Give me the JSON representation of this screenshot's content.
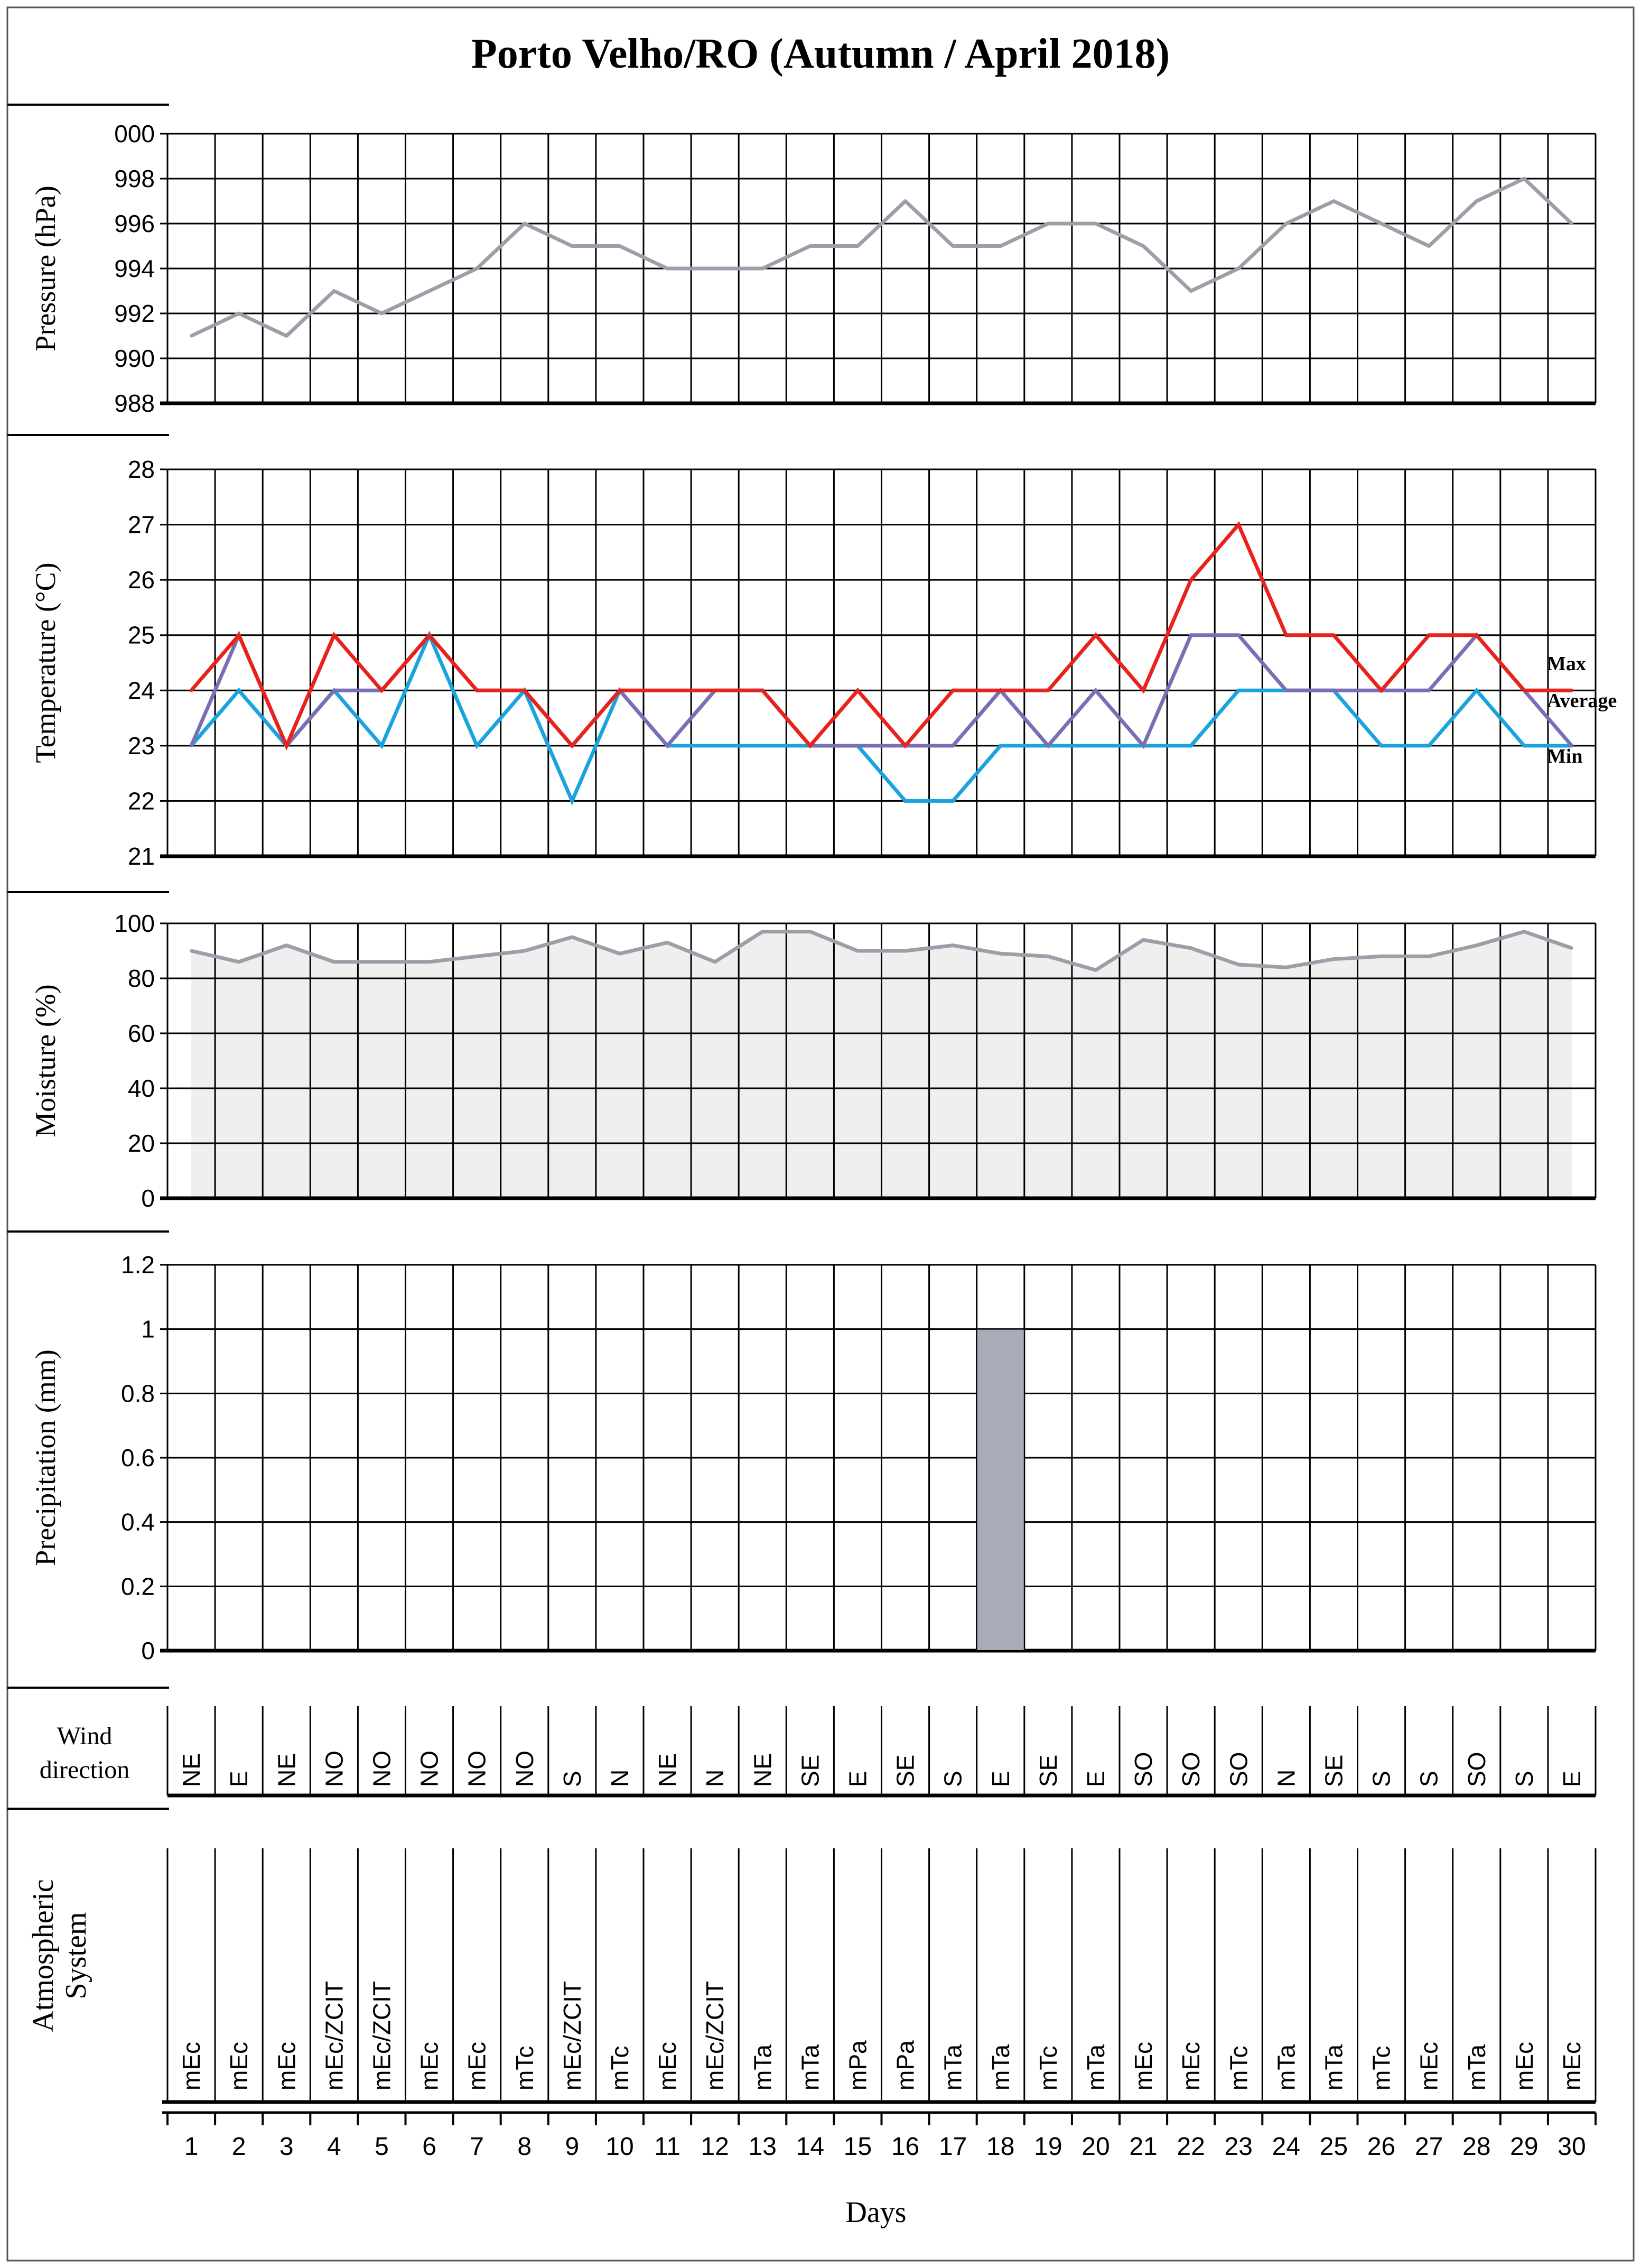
{
  "title": "Porto Velho/RO (Autumn / April 2018)",
  "days": [
    "1",
    "2",
    "3",
    "4",
    "5",
    "6",
    "7",
    "8",
    "9",
    "10",
    "11",
    "12",
    "13",
    "14",
    "15",
    "16",
    "17",
    "18",
    "19",
    "20",
    "21",
    "22",
    "23",
    "24",
    "25",
    "26",
    "27",
    "28",
    "29",
    "30"
  ],
  "days_label": "Days",
  "colors": {
    "grid": "#000000",
    "pressure_line": "#a09da8",
    "temp_max": "#e8221c",
    "temp_avg": "#7a6fb4",
    "temp_min": "#1aa3dc",
    "moisture_line": "#a09da8",
    "moisture_fill": "#efefef",
    "precip_bar": "#a9abb8"
  },
  "chart_data": [
    {
      "type": "line",
      "name": "pressure",
      "ylabel": "Pressure  (hPa)",
      "tick_labels": [
        "988",
        "990",
        "992",
        "994",
        "996",
        "998",
        "000"
      ],
      "ylim": [
        988,
        1000
      ],
      "x": [
        1,
        2,
        3,
        4,
        5,
        6,
        7,
        8,
        9,
        10,
        11,
        12,
        13,
        14,
        15,
        16,
        17,
        18,
        19,
        20,
        21,
        22,
        23,
        24,
        25,
        26,
        27,
        28,
        29,
        30
      ],
      "values": [
        991,
        992,
        991,
        993,
        992,
        993,
        994,
        996,
        995,
        995,
        994,
        994,
        994,
        995,
        995,
        997,
        995,
        995,
        996,
        996,
        995,
        993,
        994,
        996,
        997,
        996,
        995,
        997,
        998,
        996
      ]
    },
    {
      "type": "line",
      "name": "temperature",
      "ylabel": "Temperature  (°C)",
      "tick_labels": [
        "21",
        "22",
        "23",
        "24",
        "25",
        "26",
        "27",
        "28"
      ],
      "ylim": [
        21,
        28
      ],
      "x": [
        1,
        2,
        3,
        4,
        5,
        6,
        7,
        8,
        9,
        10,
        11,
        12,
        13,
        14,
        15,
        16,
        17,
        18,
        19,
        20,
        21,
        22,
        23,
        24,
        25,
        26,
        27,
        28,
        29,
        30
      ],
      "series": [
        {
          "name": "Max",
          "color_key": "temp_max",
          "values": [
            24,
            25,
            23,
            25,
            24,
            25,
            24,
            24,
            23,
            24,
            24,
            24,
            24,
            23,
            24,
            23,
            24,
            24,
            24,
            25,
            24,
            26,
            27,
            25,
            25,
            24,
            25,
            25,
            24,
            24
          ]
        },
        {
          "name": "Average",
          "color_key": "temp_avg",
          "values": [
            23,
            25,
            23,
            24,
            24,
            25,
            24,
            24,
            23,
            24,
            23,
            24,
            24,
            23,
            23,
            23,
            23,
            24,
            23,
            24,
            23,
            25,
            25,
            24,
            24,
            24,
            24,
            25,
            24,
            23
          ]
        },
        {
          "name": "Min",
          "color_key": "temp_min",
          "values": [
            23,
            24,
            23,
            24,
            23,
            25,
            23,
            24,
            22,
            24,
            23,
            23,
            23,
            23,
            23,
            22,
            22,
            23,
            23,
            23,
            23,
            23,
            24,
            24,
            24,
            23,
            23,
            24,
            23,
            23
          ]
        }
      ]
    },
    {
      "type": "area",
      "name": "moisture",
      "ylabel": "Moisture  (%)",
      "tick_labels": [
        "0",
        "20",
        "40",
        "60",
        "80",
        "100"
      ],
      "ylim": [
        0,
        100
      ],
      "x": [
        1,
        2,
        3,
        4,
        5,
        6,
        7,
        8,
        9,
        10,
        11,
        12,
        13,
        14,
        15,
        16,
        17,
        18,
        19,
        20,
        21,
        22,
        23,
        24,
        25,
        26,
        27,
        28,
        29,
        30
      ],
      "values": [
        90,
        86,
        92,
        86,
        86,
        86,
        88,
        90,
        95,
        89,
        93,
        86,
        97,
        97,
        90,
        90,
        92,
        89,
        88,
        83,
        94,
        91,
        85,
        84,
        87,
        88,
        88,
        92,
        97,
        91
      ]
    },
    {
      "type": "bar",
      "name": "precipitation",
      "ylabel": "Precipitation (mm)",
      "tick_labels": [
        "0",
        "0.2",
        "0.4",
        "0.6",
        "0.8",
        "1",
        "1.2"
      ],
      "ylim": [
        0,
        1.2
      ],
      "x": [
        1,
        2,
        3,
        4,
        5,
        6,
        7,
        8,
        9,
        10,
        11,
        12,
        13,
        14,
        15,
        16,
        17,
        18,
        19,
        20,
        21,
        22,
        23,
        24,
        25,
        26,
        27,
        28,
        29,
        30
      ],
      "values": [
        0,
        0,
        0,
        0,
        0,
        0,
        0,
        0,
        0,
        0,
        0,
        0,
        0,
        0,
        0,
        0,
        0,
        1,
        0,
        0,
        0,
        0,
        0,
        0,
        0,
        0,
        0,
        0,
        0,
        0
      ]
    },
    {
      "type": "table",
      "name": "wind",
      "label": [
        "Wind",
        "direction"
      ],
      "values": [
        "NE",
        "E",
        "NE",
        "NO",
        "NO",
        "NO",
        "NO",
        "NO",
        "S",
        "N",
        "NE",
        "N",
        "NE",
        "SE",
        "E",
        "SE",
        "S",
        "E",
        "SE",
        "E",
        "SO",
        "SO",
        "SO",
        "N",
        "SE",
        "S",
        "S",
        "SO",
        "S",
        "E"
      ]
    },
    {
      "type": "table",
      "name": "atmospheric",
      "label": [
        "Atmospheric",
        "System"
      ],
      "values": [
        "mEc",
        "mEc",
        "mEc",
        "mEc/ZCIT",
        "mEc/ZCIT",
        "mEc",
        "mEc",
        "mTc",
        "mEc/ZCIT",
        "mTc",
        "mEc",
        "mEc/ZCIT",
        "mTa",
        "mTa",
        "mPa",
        "mPa",
        "mTa",
        "mTa",
        "mTc",
        "mTa",
        "mEc",
        "mEc",
        "mTc",
        "mTa",
        "mTa",
        "mTc",
        "mEc",
        "mTa",
        "mEc",
        "mEc"
      ]
    }
  ]
}
